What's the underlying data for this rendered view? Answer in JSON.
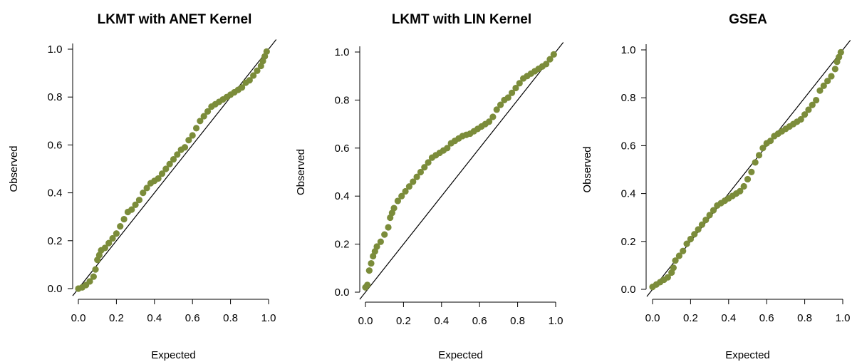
{
  "figure": {
    "point_color": "#7b8c3a"
  },
  "chart_data": [
    {
      "type": "scatter",
      "title": "LKMT with ANET Kernel",
      "xlabel": "Expected",
      "ylabel": "Observed",
      "xlim": [
        0,
        1
      ],
      "ylim": [
        0,
        1
      ],
      "xticks": [
        "0.0",
        "0.2",
        "0.4",
        "0.6",
        "0.8",
        "1.0"
      ],
      "yticks": [
        "0.0",
        "0.2",
        "0.4",
        "0.6",
        "0.8",
        "1.0"
      ],
      "reference_line": "y = x",
      "x": [
        0.0,
        0.02,
        0.04,
        0.06,
        0.08,
        0.09,
        0.1,
        0.11,
        0.12,
        0.14,
        0.16,
        0.18,
        0.2,
        0.22,
        0.24,
        0.26,
        0.28,
        0.3,
        0.32,
        0.34,
        0.36,
        0.38,
        0.4,
        0.42,
        0.44,
        0.46,
        0.48,
        0.5,
        0.52,
        0.54,
        0.56,
        0.58,
        0.6,
        0.62,
        0.64,
        0.66,
        0.68,
        0.7,
        0.72,
        0.74,
        0.76,
        0.78,
        0.8,
        0.82,
        0.84,
        0.86,
        0.88,
        0.9,
        0.92,
        0.94,
        0.96,
        0.97,
        0.98,
        0.99
      ],
      "y": [
        0.0,
        0.005,
        0.015,
        0.03,
        0.05,
        0.08,
        0.12,
        0.14,
        0.16,
        0.17,
        0.19,
        0.21,
        0.23,
        0.26,
        0.29,
        0.32,
        0.33,
        0.35,
        0.37,
        0.4,
        0.42,
        0.44,
        0.45,
        0.46,
        0.48,
        0.5,
        0.52,
        0.54,
        0.56,
        0.58,
        0.59,
        0.62,
        0.64,
        0.67,
        0.7,
        0.72,
        0.74,
        0.76,
        0.77,
        0.78,
        0.79,
        0.8,
        0.81,
        0.82,
        0.83,
        0.84,
        0.86,
        0.87,
        0.89,
        0.91,
        0.93,
        0.95,
        0.97,
        0.99
      ]
    },
    {
      "type": "scatter",
      "title": "LKMT with LIN Kernel",
      "xlabel": "Expected",
      "ylabel": "Observed",
      "xlim": [
        0,
        1
      ],
      "ylim": [
        0,
        1
      ],
      "xticks": [
        "0.0",
        "0.2",
        "0.4",
        "0.6",
        "0.8",
        "1.0"
      ],
      "yticks": [
        "0.0",
        "0.2",
        "0.4",
        "0.6",
        "0.8",
        "1.0"
      ],
      "reference_line": "y = x",
      "x": [
        0.0,
        0.01,
        0.02,
        0.03,
        0.04,
        0.05,
        0.06,
        0.08,
        0.1,
        0.12,
        0.13,
        0.14,
        0.15,
        0.17,
        0.19,
        0.21,
        0.23,
        0.25,
        0.27,
        0.29,
        0.31,
        0.33,
        0.35,
        0.37,
        0.39,
        0.41,
        0.43,
        0.45,
        0.47,
        0.49,
        0.51,
        0.53,
        0.55,
        0.57,
        0.59,
        0.61,
        0.63,
        0.65,
        0.67,
        0.69,
        0.71,
        0.73,
        0.75,
        0.77,
        0.79,
        0.81,
        0.83,
        0.85,
        0.87,
        0.89,
        0.91,
        0.93,
        0.95,
        0.97,
        0.99
      ],
      "y": [
        0.02,
        0.03,
        0.09,
        0.12,
        0.15,
        0.17,
        0.19,
        0.21,
        0.24,
        0.27,
        0.31,
        0.33,
        0.35,
        0.38,
        0.4,
        0.42,
        0.44,
        0.46,
        0.48,
        0.5,
        0.52,
        0.54,
        0.56,
        0.57,
        0.58,
        0.59,
        0.6,
        0.62,
        0.63,
        0.64,
        0.65,
        0.655,
        0.66,
        0.67,
        0.68,
        0.69,
        0.7,
        0.71,
        0.73,
        0.76,
        0.78,
        0.8,
        0.81,
        0.83,
        0.85,
        0.87,
        0.89,
        0.9,
        0.91,
        0.92,
        0.93,
        0.94,
        0.95,
        0.97,
        0.99
      ]
    },
    {
      "type": "scatter",
      "title": "GSEA",
      "xlabel": "Expected",
      "ylabel": "Observed",
      "xlim": [
        0,
        1
      ],
      "ylim": [
        0,
        1
      ],
      "xticks": [
        "0.0",
        "0.2",
        "0.4",
        "0.6",
        "0.8",
        "1.0"
      ],
      "yticks": [
        "0.0",
        "0.2",
        "0.4",
        "0.6",
        "0.8",
        "1.0"
      ],
      "reference_line": "y = x",
      "x": [
        0.0,
        0.02,
        0.04,
        0.06,
        0.08,
        0.1,
        0.11,
        0.12,
        0.14,
        0.16,
        0.18,
        0.2,
        0.22,
        0.24,
        0.26,
        0.28,
        0.3,
        0.32,
        0.34,
        0.36,
        0.38,
        0.4,
        0.42,
        0.44,
        0.46,
        0.48,
        0.5,
        0.52,
        0.54,
        0.56,
        0.58,
        0.6,
        0.62,
        0.64,
        0.66,
        0.68,
        0.7,
        0.72,
        0.74,
        0.76,
        0.78,
        0.8,
        0.82,
        0.84,
        0.86,
        0.88,
        0.9,
        0.92,
        0.94,
        0.96,
        0.97,
        0.98,
        0.99
      ],
      "y": [
        0.01,
        0.02,
        0.03,
        0.04,
        0.05,
        0.07,
        0.09,
        0.12,
        0.14,
        0.16,
        0.19,
        0.21,
        0.23,
        0.25,
        0.27,
        0.29,
        0.31,
        0.33,
        0.35,
        0.36,
        0.37,
        0.38,
        0.39,
        0.4,
        0.41,
        0.43,
        0.46,
        0.49,
        0.53,
        0.56,
        0.59,
        0.61,
        0.62,
        0.64,
        0.65,
        0.66,
        0.67,
        0.68,
        0.69,
        0.7,
        0.71,
        0.73,
        0.75,
        0.77,
        0.79,
        0.83,
        0.85,
        0.87,
        0.89,
        0.92,
        0.95,
        0.97,
        0.99
      ]
    }
  ]
}
